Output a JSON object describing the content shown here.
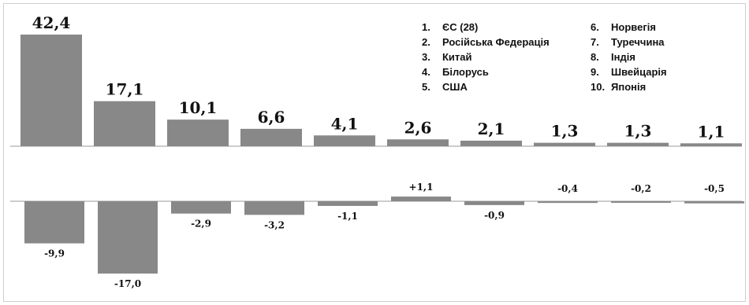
{
  "chart_data": [
    {
      "type": "bar",
      "categories": [
        "1",
        "2",
        "3",
        "4",
        "5",
        "6",
        "7",
        "8",
        "9",
        "10"
      ],
      "values": [
        42.4,
        17.1,
        10.1,
        6.6,
        4.1,
        2.6,
        2.1,
        1.3,
        1.3,
        1.1
      ],
      "value_labels": [
        "42,4",
        "17,1",
        "10,1",
        "6,6",
        "4,1",
        "2,6",
        "2,1",
        "1,3",
        "1,3",
        "1,1"
      ],
      "ylim": [
        0,
        42.4
      ]
    },
    {
      "type": "bar",
      "categories": [
        "1",
        "2",
        "3",
        "4",
        "5",
        "6",
        "7",
        "8",
        "9",
        "10"
      ],
      "values": [
        -9.9,
        -17.0,
        -2.9,
        -3.2,
        -1.1,
        1.1,
        -0.9,
        -0.4,
        -0.2,
        -0.5
      ],
      "value_labels": [
        "-9,9",
        "-17,0",
        "-2,9",
        "-3,2",
        "-1,1",
        "+1,1",
        "-0,9",
        "-0,4",
        "-0,2",
        "-0,5"
      ],
      "ylim": [
        -17.0,
        1.1
      ]
    }
  ],
  "legend": [
    {
      "num": "1.",
      "label": "ЄС (28)"
    },
    {
      "num": "2.",
      "label": "Російська Федерація"
    },
    {
      "num": "3.",
      "label": "Китай"
    },
    {
      "num": "4.",
      "label": "Білорусь"
    },
    {
      "num": "5.",
      "label": "США"
    },
    {
      "num": "6.",
      "label": "Норвегія"
    },
    {
      "num": "7.",
      "label": "Туреччина"
    },
    {
      "num": "8.",
      "label": "Індія"
    },
    {
      "num": "9.",
      "label": "Швейцарія"
    },
    {
      "num": "10.",
      "label": "Японія"
    }
  ],
  "colors": {
    "bar": "#888888",
    "axis": "#999999",
    "text": "#111111"
  }
}
